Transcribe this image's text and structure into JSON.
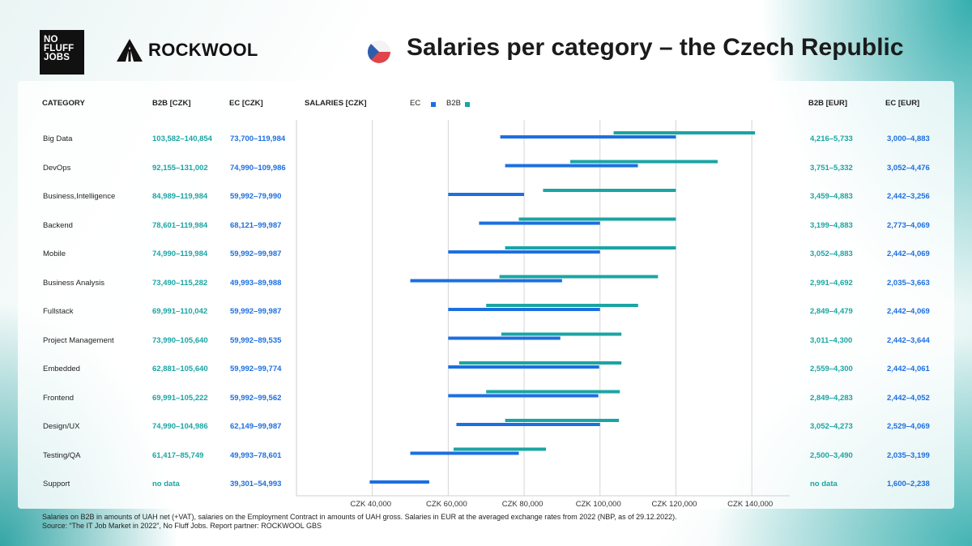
{
  "title": "Salaries per category – the Czech Republic",
  "logos": {
    "nfj": [
      "NO",
      "FLUFF",
      "JOBS"
    ],
    "nfj_tm": "TM",
    "partner": "ROCKWOOL"
  },
  "headers": {
    "category": "CATEGORY",
    "b2b_czk": "B2B [CZK]",
    "ec_czk": "EC [CZK]",
    "salaries_czk": "SALARIES [CZK]",
    "legend_ec": "EC",
    "legend_b2b": "B2B",
    "b2b_eur": "B2B [EUR]",
    "ec_eur": "EC [EUR]"
  },
  "colors": {
    "b2b": "#1aa5a3",
    "ec": "#1c6fe0",
    "grid": "#d5d5d5"
  },
  "rows": [
    {
      "category": "Big Data",
      "b2b_czk": "103,582–140,854",
      "ec_czk": "73,700–119,984",
      "b2b_eur": "4,216–5,733",
      "ec_eur": "3,000–4,883"
    },
    {
      "category": "DevOps",
      "b2b_czk": "92,155–131,002",
      "ec_czk": "74,990–109,986",
      "b2b_eur": "3,751–5,332",
      "ec_eur": "3,052–4,476"
    },
    {
      "category": "Business,Intelligence",
      "b2b_czk": "84,989–119,984",
      "ec_czk": "59,992–79,990",
      "b2b_eur": "3,459–4,883",
      "ec_eur": "2,442–3,256"
    },
    {
      "category": "Backend",
      "b2b_czk": "78,601–119,984",
      "ec_czk": "68,121–99,987",
      "b2b_eur": "3,199–4,883",
      "ec_eur": "2,773–4,069"
    },
    {
      "category": "Mobile",
      "b2b_czk": "74,990–119,984",
      "ec_czk": "59,992–99,987",
      "b2b_eur": "3,052–4,883",
      "ec_eur": "2,442–4,069"
    },
    {
      "category": "Business Analysis",
      "b2b_czk": "73,490–115,282",
      "ec_czk": "49,993–89,988",
      "b2b_eur": "2,991–4,692",
      "ec_eur": "2,035–3,663"
    },
    {
      "category": "Fullstack",
      "b2b_czk": "69,991–110,042",
      "ec_czk": "59,992–99,987",
      "b2b_eur": "2,849–4,479",
      "ec_eur": "2,442–4,069"
    },
    {
      "category": "Project Management",
      "b2b_czk": "73,990–105,640",
      "ec_czk": "59,992–89,535",
      "b2b_eur": "3,011–4,300",
      "ec_eur": "2,442–3,644"
    },
    {
      "category": "Embedded",
      "b2b_czk": "62,881–105,640",
      "ec_czk": "59,992–99,774",
      "b2b_eur": "2,559–4,300",
      "ec_eur": "2,442–4,061"
    },
    {
      "category": "Frontend",
      "b2b_czk": "69,991–105,222",
      "ec_czk": "59,992–99,562",
      "b2b_eur": "2,849–4,283",
      "ec_eur": "2,442–4,052"
    },
    {
      "category": "Design/UX",
      "b2b_czk": "74,990–104,986",
      "ec_czk": "62,149–99,987",
      "b2b_eur": "3,052–4,273",
      "ec_eur": "2,529–4,069"
    },
    {
      "category": "Testing/QA",
      "b2b_czk": "61,417–85,749",
      "ec_czk": "49,993–78,601",
      "b2b_eur": "2,500–3,490",
      "ec_eur": "2,035–3,199"
    },
    {
      "category": "Support",
      "b2b_czk": "no data",
      "ec_czk": "39,301–54,993",
      "b2b_eur": "no data",
      "ec_eur": "1,600–2,238"
    }
  ],
  "chart_data": {
    "type": "bar",
    "orientation": "horizontal-range",
    "categories": [
      "Big Data",
      "DevOps",
      "Business,Intelligence",
      "Backend",
      "Mobile",
      "Business Analysis",
      "Fullstack",
      "Project Management",
      "Embedded",
      "Frontend",
      "Design/UX",
      "Testing/QA",
      "Support"
    ],
    "series": [
      {
        "name": "EC",
        "ranges": [
          [
            73700,
            119984
          ],
          [
            74990,
            109986
          ],
          [
            59992,
            79990
          ],
          [
            68121,
            99987
          ],
          [
            59992,
            99987
          ],
          [
            49993,
            89988
          ],
          [
            59992,
            99987
          ],
          [
            59992,
            89535
          ],
          [
            59992,
            99774
          ],
          [
            59992,
            99562
          ],
          [
            62149,
            99987
          ],
          [
            49993,
            78601
          ],
          [
            39301,
            54993
          ]
        ]
      },
      {
        "name": "B2B",
        "ranges": [
          [
            103582,
            140854
          ],
          [
            92155,
            131002
          ],
          [
            84989,
            119984
          ],
          [
            78601,
            119984
          ],
          [
            74990,
            119984
          ],
          [
            73490,
            115282
          ],
          [
            69991,
            110042
          ],
          [
            73990,
            105640
          ],
          [
            62881,
            105640
          ],
          [
            69991,
            105222
          ],
          [
            74990,
            104986
          ],
          [
            61417,
            85749
          ],
          null
        ]
      }
    ],
    "x_ticks": [
      40000,
      60000,
      80000,
      100000,
      120000,
      140000
    ],
    "x_tick_labels": [
      "CZK 40,000",
      "CZK 60,000",
      "CZK 80,000",
      "CZK 100,000",
      "CZK 120,000",
      "CZK 140,000"
    ],
    "xlim": [
      20000,
      150000
    ],
    "xlabel": "SALARIES [CZK]",
    "grid": true,
    "legend": "top"
  },
  "footnote": [
    "Salaries on B2B in amounts of UAH net (+VAT), salaries on the Employment Contract in amounts of UAH gross. Salaries in EUR at the averaged exchange rates from 2022 (NBP, as of 29.12.2022).",
    "Source: “The IT Job Market in 2022”, No Fluff Jobs. Report partner: ROCKWOOL GBS"
  ]
}
